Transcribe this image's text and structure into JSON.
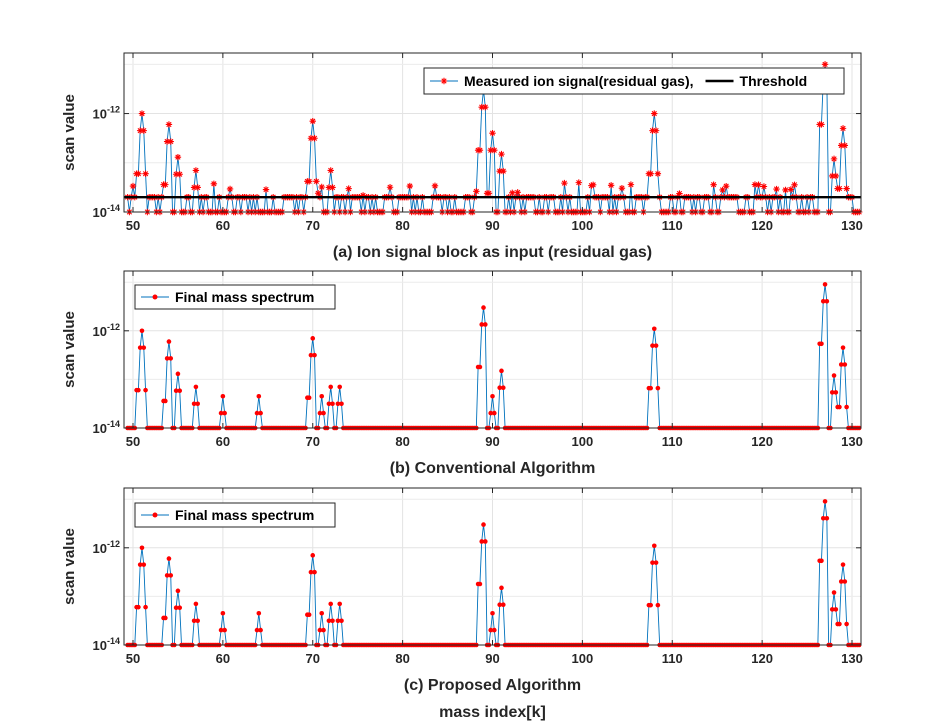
{
  "chart_data": [
    {
      "type": "line",
      "title": "(a) Ion signal block as input (residual gas)",
      "xlabel": "",
      "ylabel": "scan value",
      "xlim": [
        49,
        131
      ],
      "ylim": [
        1e-14,
        1.7e-11
      ],
      "yscale": "log",
      "x_ticks": [
        50,
        60,
        70,
        80,
        90,
        100,
        110,
        120,
        130
      ],
      "y_ticks": [
        {
          "value": 1e-12,
          "base": "10",
          "exp": "-12"
        },
        {
          "value": 1e-14,
          "base": "10",
          "exp": "-14"
        }
      ],
      "grid": true,
      "legend_position": "top-right",
      "threshold": 2e-14,
      "series": [
        {
          "name": "Measured ion signal(residual gas),",
          "color": "#0072BD",
          "marker": "*",
          "marker_color": "#FF0000"
        },
        {
          "name": "Threshold",
          "color": "#000000"
        }
      ],
      "peaks": [
        {
          "mass": 51,
          "peak": 1e-12
        },
        {
          "mass": 54,
          "peak": 6e-13
        },
        {
          "mass": 55,
          "peak": 1.3e-13
        },
        {
          "mass": 57,
          "peak": 7e-14
        },
        {
          "mass": 70,
          "peak": 7e-13
        },
        {
          "mass": 72,
          "peak": 7e-14
        },
        {
          "mass": 89,
          "peak": 3e-12
        },
        {
          "mass": 90,
          "peak": 4e-13
        },
        {
          "mass": 91,
          "peak": 1.5e-13
        },
        {
          "mass": 108,
          "peak": 1e-12
        },
        {
          "mass": 127,
          "peak": 1e-11
        },
        {
          "mass": 128,
          "peak": 1.2e-13
        },
        {
          "mass": 129,
          "peak": 5e-13
        }
      ]
    },
    {
      "type": "line",
      "title": "(b) Conventional Algorithm",
      "xlabel": "",
      "ylabel": "scan value",
      "xlim": [
        49,
        131
      ],
      "ylim": [
        1e-14,
        1.7e-11
      ],
      "yscale": "log",
      "x_ticks": [
        50,
        60,
        70,
        80,
        90,
        100,
        110,
        120,
        130
      ],
      "y_ticks": [
        {
          "value": 1e-12,
          "base": "10",
          "exp": "-12"
        },
        {
          "value": 1e-14,
          "base": "10",
          "exp": "-14"
        }
      ],
      "grid": true,
      "legend_position": "top-left",
      "series": [
        {
          "name": "Final mass spectrum",
          "color": "#0072BD",
          "marker": ".",
          "marker_color": "#FF0000"
        }
      ],
      "peaks": [
        {
          "mass": 51,
          "peak": 1e-12
        },
        {
          "mass": 54,
          "peak": 6e-13
        },
        {
          "mass": 55,
          "peak": 1.3e-13
        },
        {
          "mass": 57,
          "peak": 7e-14
        },
        {
          "mass": 60,
          "peak": 4.5e-14
        },
        {
          "mass": 64,
          "peak": 4.5e-14
        },
        {
          "mass": 70,
          "peak": 7e-13
        },
        {
          "mass": 71,
          "peak": 4.5e-14
        },
        {
          "mass": 72,
          "peak": 7e-14
        },
        {
          "mass": 73,
          "peak": 7e-14
        },
        {
          "mass": 89,
          "peak": 3e-12
        },
        {
          "mass": 90,
          "peak": 4.5e-14
        },
        {
          "mass": 91,
          "peak": 1.5e-13
        },
        {
          "mass": 108,
          "peak": 1.1e-12
        },
        {
          "mass": 127,
          "peak": 9e-12
        },
        {
          "mass": 128,
          "peak": 1.2e-13
        },
        {
          "mass": 129,
          "peak": 4.5e-13
        }
      ]
    },
    {
      "type": "line",
      "title": "(c) Proposed Algorithm",
      "xlabel": "mass index[k]",
      "ylabel": "scan value",
      "xlim": [
        49,
        131
      ],
      "ylim": [
        1e-14,
        1.7e-11
      ],
      "yscale": "log",
      "x_ticks": [
        50,
        60,
        70,
        80,
        90,
        100,
        110,
        120,
        130
      ],
      "y_ticks": [
        {
          "value": 1e-12,
          "base": "10",
          "exp": "-12"
        },
        {
          "value": 1e-14,
          "base": "10",
          "exp": "-14"
        }
      ],
      "grid": true,
      "legend_position": "top-left",
      "series": [
        {
          "name": "Final mass spectrum",
          "color": "#0072BD",
          "marker": ".",
          "marker_color": "#FF0000"
        }
      ],
      "peaks": [
        {
          "mass": 51,
          "peak": 1e-12
        },
        {
          "mass": 54,
          "peak": 6e-13
        },
        {
          "mass": 55,
          "peak": 1.3e-13
        },
        {
          "mass": 57,
          "peak": 7e-14
        },
        {
          "mass": 60,
          "peak": 4.5e-14
        },
        {
          "mass": 64,
          "peak": 4.5e-14
        },
        {
          "mass": 70,
          "peak": 7e-13
        },
        {
          "mass": 71,
          "peak": 4.5e-14
        },
        {
          "mass": 72,
          "peak": 7e-14
        },
        {
          "mass": 73,
          "peak": 7e-14
        },
        {
          "mass": 89,
          "peak": 3e-12
        },
        {
          "mass": 90,
          "peak": 4.5e-14
        },
        {
          "mass": 91,
          "peak": 1.5e-13
        },
        {
          "mass": 108,
          "peak": 1.1e-12
        },
        {
          "mass": 127,
          "peak": 9e-12
        },
        {
          "mass": 128,
          "peak": 1.2e-13
        },
        {
          "mass": 129,
          "peak": 4.5e-13
        }
      ]
    }
  ]
}
